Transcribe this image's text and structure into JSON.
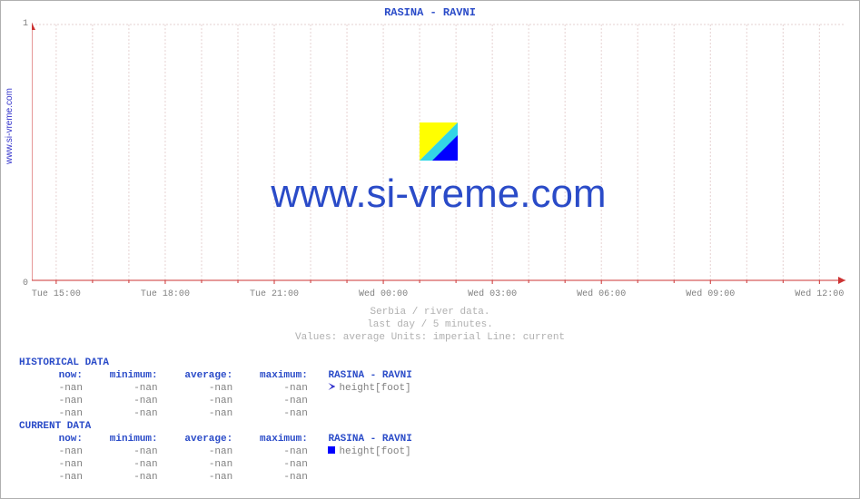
{
  "site_label": "www.si-vreme.com",
  "chart": {
    "type": "line",
    "title": "RASINA -  RAVNI",
    "background_color": "#ffffff",
    "grid_color": "#e6d2d2",
    "grid_dash": "2,2",
    "axis_color": "#cc3333",
    "ylim": [
      0,
      1
    ],
    "yticks": [
      0,
      1
    ],
    "xtick_labels": [
      "Tue 15:00",
      "Tue 18:00",
      "Tue 21:00",
      "Wed 00:00",
      "Wed 03:00",
      "Wed 06:00",
      "Wed 09:00",
      "Wed 12:00"
    ],
    "xtick_positions_pct": [
      3,
      16.4,
      29.8,
      43.2,
      56.6,
      70.0,
      83.4,
      96.8
    ],
    "minor_per_major": 2,
    "title_fontsize": 12,
    "tick_fontsize": 10,
    "title_color": "#2a4bc8",
    "tick_color": "#808080"
  },
  "overlay": {
    "text": "www.si-vreme.com",
    "text_color": "#2a4bc8",
    "text_fontsize": 44,
    "logo_colors": {
      "yellow": "#ffff00",
      "cyan": "#33d6e6",
      "blue": "#0000ff"
    }
  },
  "caption": {
    "line1": "Serbia / river data.",
    "line2": "last day / 5 minutes.",
    "line3": "Values: average  Units: imperial  Line: current",
    "color": "#b0b0b0",
    "fontsize": 11
  },
  "tables": {
    "headers": {
      "now": "now:",
      "min": "minimum:",
      "avg": "average:",
      "max": "maximum:"
    },
    "historical": {
      "title": "HISTORICAL DATA",
      "series_header": "RASINA -  RAVNI",
      "marker_color": "#3333cc",
      "rows": [
        {
          "now": "-nan",
          "min": "-nan",
          "avg": "-nan",
          "max": "-nan",
          "series": "height[foot]"
        },
        {
          "now": "-nan",
          "min": "-nan",
          "avg": "-nan",
          "max": "-nan",
          "series": ""
        },
        {
          "now": "-nan",
          "min": "-nan",
          "avg": "-nan",
          "max": "-nan",
          "series": ""
        }
      ]
    },
    "current": {
      "title": "CURRENT DATA",
      "series_header": "RASINA -  RAVNI",
      "marker_color": "#0000ff",
      "rows": [
        {
          "now": "-nan",
          "min": "-nan",
          "avg": "-nan",
          "max": "-nan",
          "series": "height[foot]"
        },
        {
          "now": "-nan",
          "min": "-nan",
          "avg": "-nan",
          "max": "-nan",
          "series": ""
        },
        {
          "now": "-nan",
          "min": "-nan",
          "avg": "-nan",
          "max": "-nan",
          "series": ""
        }
      ]
    }
  }
}
